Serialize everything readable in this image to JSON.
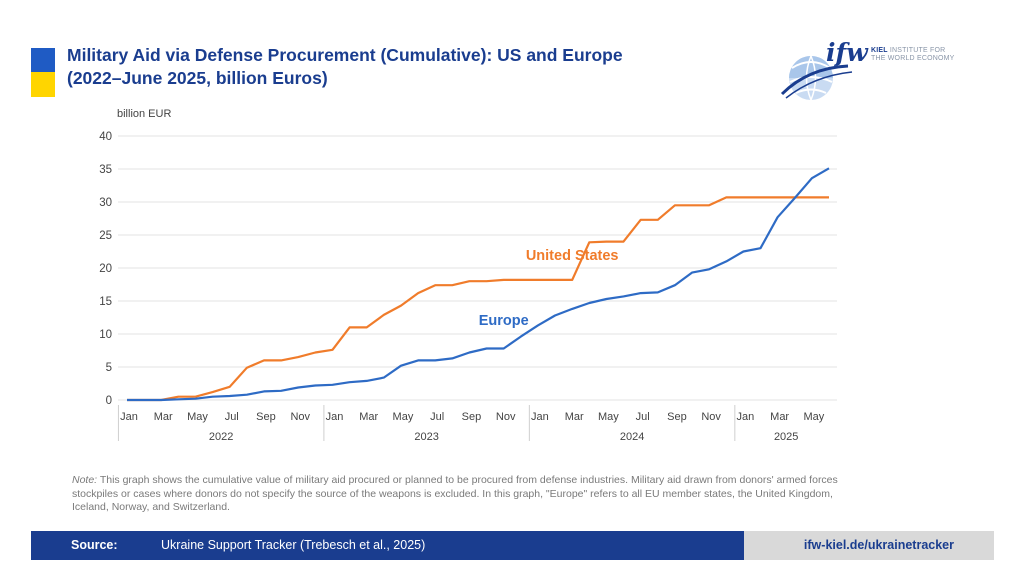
{
  "header": {
    "title_line1": "Military Aid via Defense Procurement (Cumulative): US and Europe",
    "title_line2": "(2022–June 2025, billion Euros)"
  },
  "logo": {
    "mark": "ifw",
    "name_bold": "KIEL",
    "name_rest": " INSTITUTE FOR",
    "name_line2": "THE WORLD ECONOMY",
    "icon": "globe-icon"
  },
  "colors": {
    "us": "#f07c2b",
    "europe": "#2e6bc5",
    "title": "#1a3d8f",
    "flag_blue": "#1f5bc4",
    "flag_yellow": "#ffd500"
  },
  "chart_data": {
    "type": "line",
    "ylabel": "billion EUR",
    "ylim": [
      0,
      40
    ],
    "yticks": [
      0,
      5,
      10,
      15,
      20,
      25,
      30,
      35,
      40
    ],
    "grid": true,
    "month_tick_labels": [
      "Jan",
      "Mar",
      "May",
      "Jul",
      "Sep",
      "Nov",
      "Jan",
      "Mar",
      "May",
      "Jul",
      "Sep",
      "Nov",
      "Jan",
      "Mar",
      "May",
      "Jul",
      "Sep",
      "Nov",
      "Jan",
      "Mar",
      "May"
    ],
    "month_tick_index": [
      0,
      2,
      4,
      6,
      8,
      10,
      12,
      14,
      16,
      18,
      20,
      22,
      24,
      26,
      28,
      30,
      32,
      34,
      36,
      38,
      40
    ],
    "years": [
      {
        "label": "2022",
        "start": 0,
        "end": 11
      },
      {
        "label": "2023",
        "start": 12,
        "end": 23
      },
      {
        "label": "2024",
        "start": 24,
        "end": 35
      },
      {
        "label": "2025",
        "start": 36,
        "end": 41
      }
    ],
    "series": [
      {
        "name": "United States",
        "label_at": 26,
        "label_value": 21.2,
        "values": [
          0,
          0,
          0,
          0.5,
          0.5,
          1.2,
          2.0,
          4.9,
          6.0,
          6.0,
          6.5,
          7.2,
          7.6,
          11.0,
          11.0,
          12.9,
          14.3,
          16.2,
          17.4,
          17.4,
          18.0,
          18.0,
          18.2,
          18.2,
          18.2,
          18.2,
          18.2,
          23.9,
          24.0,
          24.0,
          27.3,
          27.3,
          29.5,
          29.5,
          29.5,
          30.7,
          30.7,
          30.7,
          30.7,
          30.7,
          30.7,
          30.7
        ]
      },
      {
        "name": "Europe",
        "label_at": 22,
        "label_value": 11.4,
        "values": [
          0,
          0,
          0,
          0.1,
          0.2,
          0.5,
          0.6,
          0.8,
          1.3,
          1.4,
          1.9,
          2.2,
          2.3,
          2.7,
          2.9,
          3.4,
          5.2,
          6.0,
          6.0,
          6.3,
          7.2,
          7.8,
          7.8,
          9.6,
          11.3,
          12.8,
          13.8,
          14.7,
          15.3,
          15.7,
          16.2,
          16.3,
          17.4,
          19.3,
          19.8,
          21.0,
          22.5,
          23.0,
          27.7,
          30.6,
          33.6,
          35.1
        ]
      }
    ]
  },
  "note": {
    "prefix": "Note:",
    "text": " This graph shows the cumulative value of military aid procured or planned to be procured from defense industries. Military aid drawn from donors' armed forces stockpiles or cases where donors do not specify the source of the weapons is excluded. In this graph, \"Europe\" refers to all EU member states, the United Kingdom, Iceland, Norway, and Switzerland."
  },
  "footer": {
    "source_label": "Source:",
    "source_text": " Ukraine Support Tracker (Trebesch et al., 2025)",
    "url": "ifw-kiel.de/ukrainetracker"
  }
}
